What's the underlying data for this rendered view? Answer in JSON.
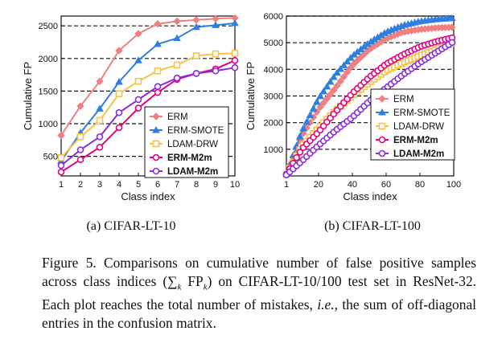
{
  "chart_data": [
    {
      "type": "line",
      "subtitle": "(a)  CIFAR-LT-10",
      "xlabel": "Class index",
      "ylabel": "Cumulative FP",
      "xlim": [
        1,
        10
      ],
      "ylim": [
        200,
        2650
      ],
      "xticks": [
        1,
        2,
        3,
        4,
        5,
        6,
        7,
        8,
        9,
        10
      ],
      "yticks": [
        500,
        1000,
        1500,
        2000,
        2500
      ],
      "grid": "dashed horizontal",
      "legend": "bottom-right",
      "series": [
        {
          "name": "ERM",
          "color": "#f08080",
          "marker": "diamond",
          "bold": false,
          "x": [
            1,
            2,
            3,
            4,
            5,
            6,
            7,
            8,
            9,
            10
          ],
          "y": [
            820,
            1270,
            1650,
            2120,
            2380,
            2530,
            2570,
            2590,
            2610,
            2620
          ]
        },
        {
          "name": "ERM-SMOTE",
          "color": "#2f7fe0",
          "marker": "triangle",
          "bold": false,
          "x": [
            1,
            2,
            3,
            4,
            5,
            6,
            7,
            8,
            9,
            10
          ],
          "y": [
            430,
            860,
            1230,
            1640,
            1970,
            2220,
            2310,
            2480,
            2510,
            2540
          ]
        },
        {
          "name": "LDAM-DRW",
          "color": "#f5c24b",
          "marker": "square",
          "bold": false,
          "x": [
            1,
            2,
            3,
            4,
            5,
            6,
            7,
            8,
            9,
            10
          ],
          "y": [
            480,
            800,
            1050,
            1460,
            1650,
            1810,
            1900,
            2040,
            2070,
            2080
          ]
        },
        {
          "name": "ERM-M2m",
          "color": "#e5007e",
          "marker": "circle",
          "bold": true,
          "x": [
            1,
            2,
            3,
            4,
            5,
            6,
            7,
            8,
            9,
            10
          ],
          "y": [
            260,
            450,
            640,
            940,
            1240,
            1480,
            1680,
            1770,
            1840,
            1970
          ]
        },
        {
          "name": "LDAM-M2m",
          "color": "#8a2be2",
          "marker": "circle",
          "bold": true,
          "x": [
            1,
            2,
            3,
            4,
            5,
            6,
            7,
            8,
            9,
            10
          ],
          "y": [
            360,
            600,
            800,
            1170,
            1370,
            1570,
            1700,
            1770,
            1810,
            1860
          ]
        }
      ]
    },
    {
      "type": "line",
      "subtitle": "(b)  CIFAR-LT-100",
      "xlabel": "Class index",
      "ylabel": "Cumulative FP",
      "xlim": [
        1,
        100
      ],
      "ylim": [
        0,
        6000
      ],
      "xticks": [
        1,
        20,
        40,
        60,
        80,
        100
      ],
      "yticks": [
        1000,
        2000,
        3000,
        4000,
        5000,
        6000
      ],
      "grid": "dashed horizontal",
      "legend": "bottom-right",
      "series": [
        {
          "name": "ERM",
          "color": "#f08080",
          "marker": "diamond",
          "bold": false,
          "x": [
            1,
            10,
            20,
            30,
            40,
            50,
            60,
            70,
            80,
            90,
            100
          ],
          "y": [
            80,
            1500,
            2500,
            3300,
            4150,
            4750,
            5150,
            5400,
            5500,
            5560,
            5580
          ]
        },
        {
          "name": "ERM-SMOTE",
          "color": "#2f7fe0",
          "marker": "triangle",
          "bold": false,
          "x": [
            1,
            10,
            20,
            30,
            40,
            50,
            60,
            70,
            80,
            90,
            100
          ],
          "y": [
            80,
            1650,
            2900,
            3800,
            4500,
            5000,
            5400,
            5650,
            5800,
            5880,
            5920
          ]
        },
        {
          "name": "LDAM-DRW",
          "color": "#f5c24b",
          "marker": "square",
          "bold": false,
          "x": [
            1,
            10,
            20,
            30,
            40,
            50,
            60,
            70,
            80,
            90,
            100
          ],
          "y": [
            60,
            1100,
            1800,
            2450,
            3000,
            3500,
            3950,
            4250,
            4500,
            4750,
            5000
          ]
        },
        {
          "name": "ERM-M2m",
          "color": "#e5007e",
          "marker": "circle",
          "bold": true,
          "x": [
            1,
            10,
            20,
            30,
            40,
            50,
            60,
            70,
            80,
            90,
            100
          ],
          "y": [
            60,
            1000,
            1650,
            2400,
            3100,
            3700,
            4200,
            4550,
            4850,
            5050,
            5200
          ]
        },
        {
          "name": "LDAM-M2m",
          "color": "#8a2be2",
          "marker": "circle",
          "bold": true,
          "x": [
            1,
            10,
            20,
            30,
            40,
            50,
            60,
            70,
            80,
            90,
            100
          ],
          "y": [
            40,
            550,
            1150,
            1700,
            2200,
            2800,
            3300,
            3800,
            4250,
            4650,
            5050
          ]
        }
      ]
    }
  ],
  "caption": {
    "prefix": "Figure 5. Comparisons on cumulative number of false positive samples across class indices (",
    "math": "∑k FPk",
    "suffix": ") on CIFAR-LT-10/100 test set in ResNet-32. Each plot reaches the total number of mistakes, ",
    "ie": "i.e.",
    "suffix2": ", the sum of off-diagonal entries in the confusion matrix."
  }
}
